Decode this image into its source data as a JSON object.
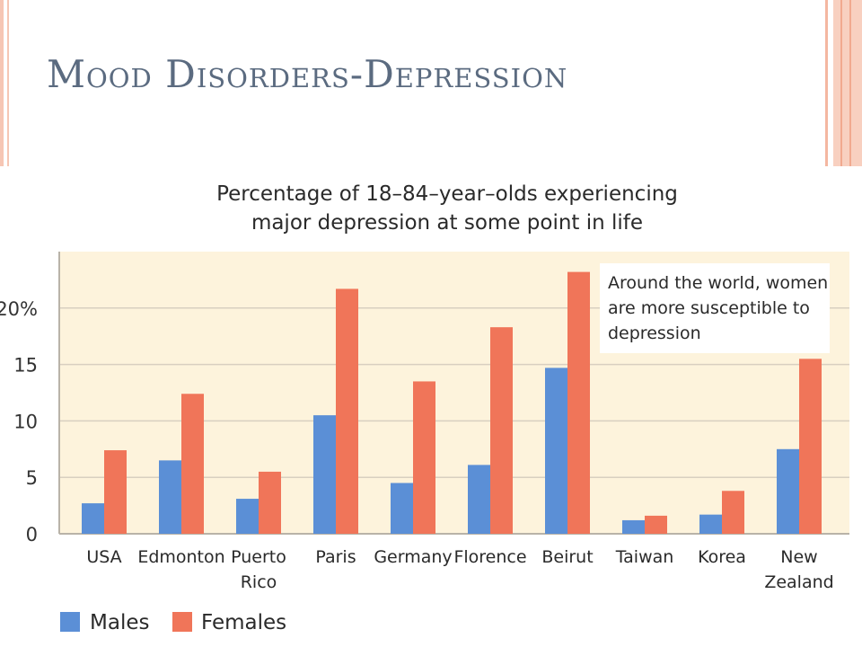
{
  "slide": {
    "title": "Mood Disorders-Depression"
  },
  "colors": {
    "males": "#5b8fd6",
    "females": "#f07559",
    "plot_bg": "#fdf3dc",
    "grid": "#d8cfc0"
  },
  "chart_data": {
    "type": "bar",
    "title_lines": [
      "Percentage of 18–84–year–olds experiencing",
      "major depression at some point in life"
    ],
    "categories": [
      [
        "USA"
      ],
      [
        "Edmonton"
      ],
      [
        "Puerto",
        "Rico"
      ],
      [
        "Paris"
      ],
      [
        "Germany"
      ],
      [
        "Florence"
      ],
      [
        "Beirut"
      ],
      [
        "Taiwan"
      ],
      [
        "Korea"
      ],
      [
        "New",
        "Zealand"
      ]
    ],
    "series": [
      {
        "name": "Males",
        "values": [
          2.7,
          6.5,
          3.1,
          10.5,
          4.5,
          6.1,
          14.7,
          1.2,
          1.7,
          7.5
        ]
      },
      {
        "name": "Females",
        "values": [
          7.4,
          12.4,
          5.5,
          21.7,
          13.5,
          18.3,
          23.2,
          1.6,
          3.8,
          15.5
        ]
      }
    ],
    "y_ticks": [
      {
        "value": 0,
        "label": "0"
      },
      {
        "value": 5,
        "label": "5"
      },
      {
        "value": 10,
        "label": "10"
      },
      {
        "value": 15,
        "label": "15"
      },
      {
        "value": 20,
        "label": "20%"
      }
    ],
    "ylim": [
      0,
      25
    ],
    "grid": true,
    "legend_position": "bottom-left",
    "annotation": [
      "Around the world, women",
      "are more susceptible to",
      "depression"
    ]
  }
}
